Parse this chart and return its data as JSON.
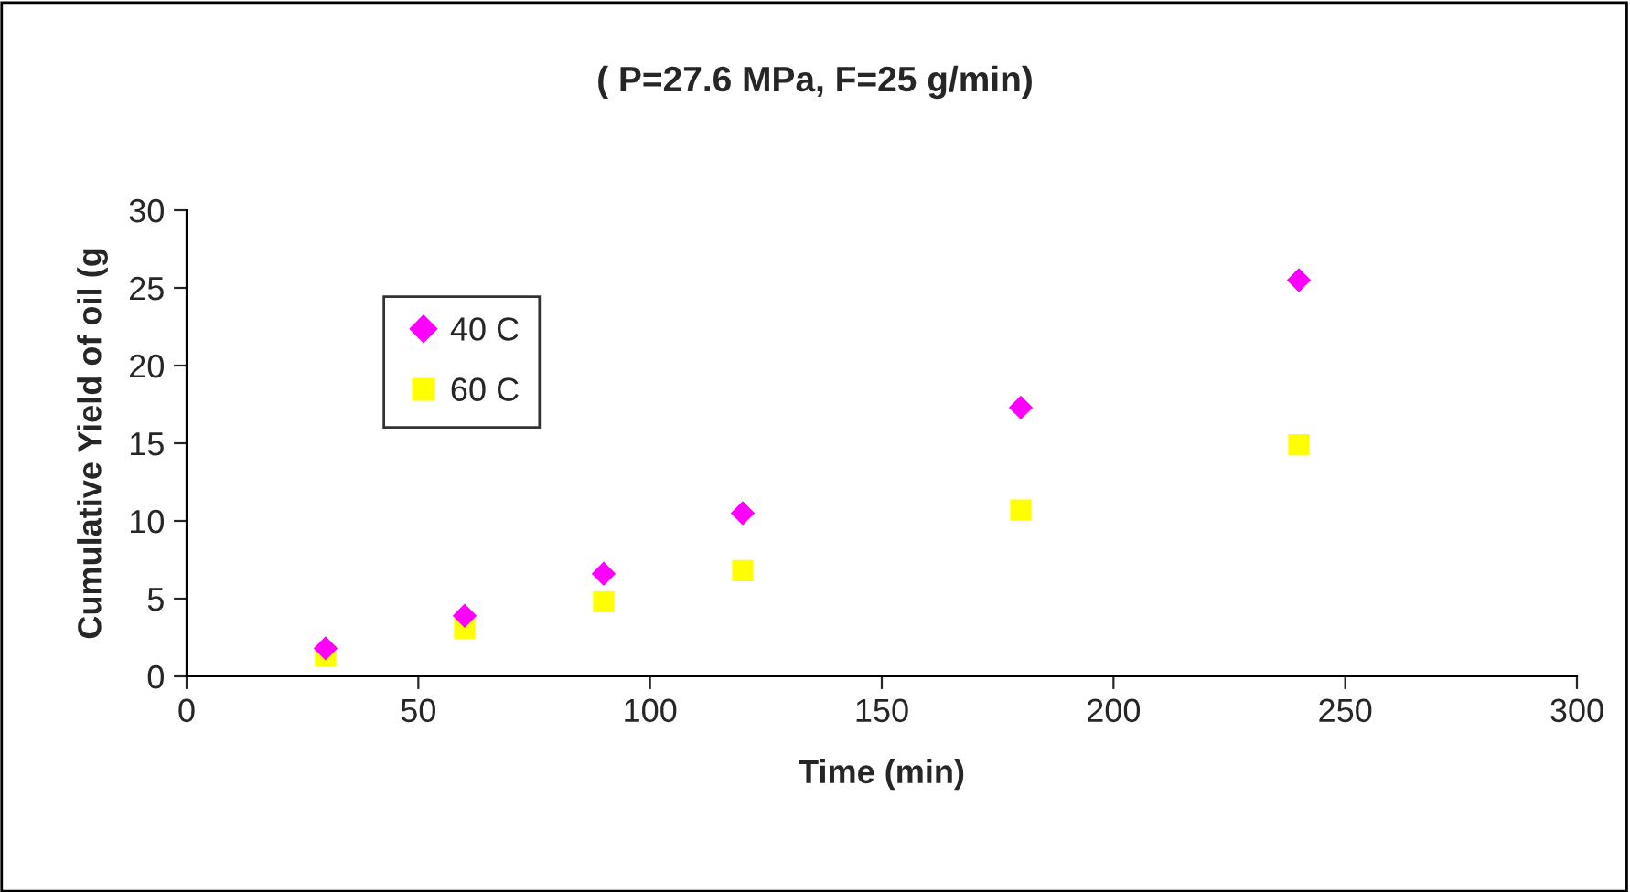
{
  "chart_data": {
    "type": "scatter",
    "title": "( P=27.6 MPa, F=25 g/min)",
    "xlabel": "Time (min)",
    "ylabel": "Cumulative Yield of oil (g",
    "x": [
      30,
      60,
      90,
      120,
      180,
      240
    ],
    "series": [
      {
        "name": "40 C",
        "color": "#ff00ff",
        "marker": "diamond",
        "values": [
          1.8,
          3.9,
          6.6,
          10.5,
          17.3,
          25.5
        ]
      },
      {
        "name": "60 C",
        "color": "#ffff00",
        "marker": "square",
        "values": [
          1.3,
          3.1,
          4.8,
          6.8,
          10.7,
          14.9
        ]
      }
    ],
    "xlim": [
      0,
      300
    ],
    "xticks": [
      0,
      50,
      100,
      150,
      200,
      250,
      300
    ],
    "ylim": [
      0,
      30
    ],
    "yticks": [
      0,
      5,
      10,
      15,
      20,
      25,
      30
    ],
    "grid": false,
    "legend": "top left"
  }
}
